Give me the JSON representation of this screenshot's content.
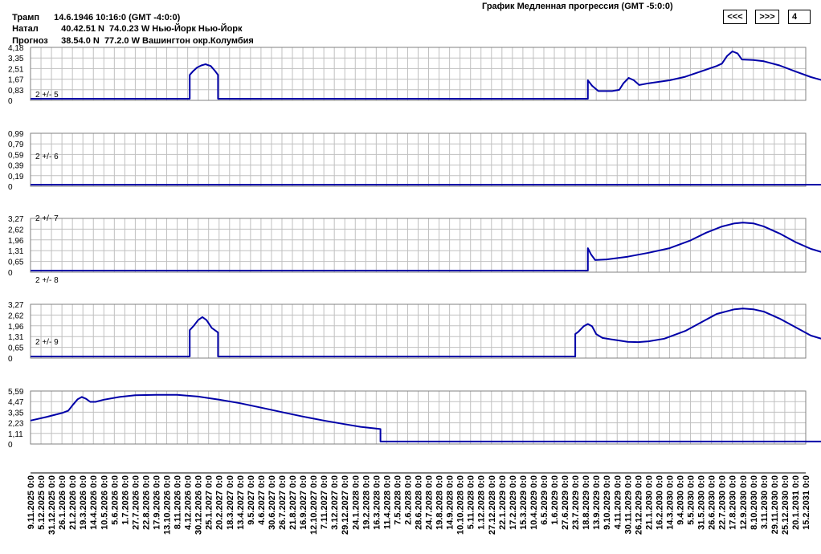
{
  "header": {
    "rows": [
      {
        "label": "Трамп",
        "value": "14.6.1946 10:16:0 (GMT -4:0:0)"
      },
      {
        "label": "Натал",
        "value": "40.42.51 N  74.0.23 W Нью-Йорк Нью-Йорк"
      },
      {
        "label": "Прогноз",
        "value": "38.54.0 N  77.2.0 W Вашингтон окр.Колумбия"
      }
    ],
    "chart_title": "График Медленная прогрессия (GMT -5:0:0)",
    "prev_label": "<<<",
    "next_label": ">>>",
    "page_value": "4"
  },
  "colors": {
    "line": "#0000a8",
    "grid": "#c0c0c0",
    "axis": "#000000",
    "background": "#ffffff"
  },
  "chart_data": {
    "type": "line",
    "x_tick_labels": [
      "9.11.2025 0:0",
      "5.12.2025 0:0",
      "31.12.2025 0:0",
      "26.1.2026 0:0",
      "21.2.2026 0:0",
      "19.3.2026 0:0",
      "14.4.2026 0:0",
      "10.5.2026 0:0",
      "5.6.2026 0:0",
      "1.7.2026 0:0",
      "27.7.2026 0:0",
      "22.8.2026 0:0",
      "17.9.2026 0:0",
      "13.10.2026 0:0",
      "8.11.2026 0:0",
      "4.12.2026 0:0",
      "30.12.2026 0:0",
      "25.1.2027 0:0",
      "20.2.2027 0:0",
      "18.3.2027 0:0",
      "13.4.2027 0:0",
      "9.5.2027 0:0",
      "4.6.2027 0:0",
      "30.6.2027 0:0",
      "26.7.2027 0:0",
      "21.8.2027 0:0",
      "16.9.2027 0:0",
      "12.10.2027 0:0",
      "7.11.2027 0:0",
      "3.12.2027 0:0",
      "29.12.2027 0:0",
      "24.1.2028 0:0",
      "19.2.2028 0:0",
      "16.3.2028 0:0",
      "11.4.2028 0:0",
      "7.5.2028 0:0",
      "2.6.2028 0:0",
      "28.6.2028 0:0",
      "24.7.2028 0:0",
      "19.8.2028 0:0",
      "14.9.2028 0:0",
      "10.10.2028 0:0",
      "5.11.2028 0:0",
      "1.12.2028 0:0",
      "27.12.2028 0:0",
      "22.1.2029 0:0",
      "17.2.2029 0:0",
      "15.3.2029 0:0",
      "10.4.2029 0:0",
      "6.5.2029 0:0",
      "1.6.2029 0:0",
      "27.6.2029 0:0",
      "23.7.2029 0:0",
      "18.8.2029 0:0",
      "13.9.2029 0:0",
      "9.10.2029 0:0",
      "4.11.2029 0:0",
      "30.11.2029 0:0",
      "26.12.2029 0:0",
      "21.1.2030 0:0",
      "16.2.2030 0:0",
      "14.3.2030 0:0",
      "9.4.2030 0:0",
      "5.5.2030 0:0",
      "31.5.2030 0:0",
      "26.6.2030 0:0",
      "22.7.2030 0:0",
      "17.8.2030 0:0",
      "12.9.2030 0:0",
      "8.10.2030 0:0",
      "3.11.2030 0:0",
      "29.11.2030 0:0",
      "25.12.2030 0:0",
      "20.1.2031 0:0",
      "15.2.2031 0:0"
    ],
    "panels": [
      {
        "label": "2 +/- 5",
        "y_ticks": [
          "4,18",
          "3,35",
          "2,51",
          "1,67",
          "0,83",
          "0"
        ],
        "ylim": [
          0,
          4.18
        ],
        "points": [
          [
            0,
            0
          ],
          [
            11.6,
            0
          ],
          [
            15.2,
            0
          ],
          [
            15.2,
            2.0
          ],
          [
            15.5,
            2.3
          ],
          [
            15.9,
            2.62
          ],
          [
            16.3,
            2.8
          ],
          [
            16.7,
            2.9
          ],
          [
            17.2,
            2.75
          ],
          [
            17.6,
            2.35
          ],
          [
            17.9,
            2.0
          ],
          [
            17.9,
            0
          ],
          [
            19.5,
            0
          ],
          [
            53.2,
            0
          ],
          [
            53.2,
            1.55
          ],
          [
            53.6,
            1.1
          ],
          [
            54.2,
            0.65
          ],
          [
            55.5,
            0.65
          ],
          [
            56.2,
            0.75
          ],
          [
            56.6,
            1.3
          ],
          [
            57.1,
            1.75
          ],
          [
            57.6,
            1.55
          ],
          [
            58.1,
            1.15
          ],
          [
            59.0,
            1.3
          ],
          [
            61.0,
            1.55
          ],
          [
            62.5,
            1.85
          ],
          [
            64.0,
            2.3
          ],
          [
            65.5,
            2.75
          ],
          [
            66.0,
            2.95
          ],
          [
            66.5,
            3.6
          ],
          [
            67.0,
            3.98
          ],
          [
            67.5,
            3.8
          ],
          [
            67.9,
            3.3
          ],
          [
            69.0,
            3.25
          ],
          [
            70.0,
            3.15
          ],
          [
            71.5,
            2.8
          ],
          [
            73.0,
            2.3
          ],
          [
            74.5,
            1.82
          ],
          [
            76.0,
            1.45
          ],
          [
            77.0,
            1.25
          ]
        ]
      },
      {
        "label": "2 +/- 6",
        "y_ticks": [
          "0,99",
          "0,79",
          "0,59",
          "0,39",
          "0,19",
          "0"
        ],
        "ylim": [
          0,
          0.99
        ],
        "points": [
          [
            0,
            0
          ],
          [
            77,
            0
          ]
        ]
      },
      {
        "label": "2 +/- 7",
        "y_ticks": [
          "3,27",
          "2,62",
          "1,96",
          "1,31",
          "0,65",
          "0"
        ],
        "ylim": [
          0,
          3.27
        ],
        "points": [
          [
            0,
            0
          ],
          [
            53.2,
            0
          ],
          [
            53.2,
            1.45
          ],
          [
            53.5,
            1.05
          ],
          [
            53.9,
            0.68
          ],
          [
            55.0,
            0.72
          ],
          [
            57.0,
            0.9
          ],
          [
            59.0,
            1.15
          ],
          [
            61.0,
            1.45
          ],
          [
            63.0,
            1.95
          ],
          [
            64.5,
            2.45
          ],
          [
            66.0,
            2.85
          ],
          [
            67.2,
            3.05
          ],
          [
            68.0,
            3.1
          ],
          [
            69.0,
            3.05
          ],
          [
            70.0,
            2.85
          ],
          [
            71.5,
            2.4
          ],
          [
            73.0,
            1.85
          ],
          [
            74.5,
            1.4
          ],
          [
            76.0,
            1.1
          ],
          [
            77.0,
            0.95
          ]
        ]
      },
      {
        "label": "2 +/- 8",
        "y_ticks": [],
        "ylim": [
          0,
          1
        ],
        "points": []
      },
      {
        "label": "2 +/- 9",
        "y_ticks": [
          "3,27",
          "2,62",
          "1,96",
          "1,31",
          "0,65",
          "0"
        ],
        "ylim": [
          0,
          3.27
        ],
        "points": [
          [
            0,
            0
          ],
          [
            15.2,
            0
          ],
          [
            15.2,
            1.7
          ],
          [
            15.6,
            2.0
          ],
          [
            16.0,
            2.35
          ],
          [
            16.4,
            2.55
          ],
          [
            16.8,
            2.35
          ],
          [
            17.3,
            1.85
          ],
          [
            17.9,
            1.55
          ],
          [
            17.9,
            0
          ],
          [
            19.5,
            0
          ],
          [
            52.0,
            0
          ],
          [
            52.0,
            1.45
          ],
          [
            52.3,
            1.6
          ],
          [
            52.8,
            1.95
          ],
          [
            53.2,
            2.1
          ],
          [
            53.6,
            1.95
          ],
          [
            54.0,
            1.45
          ],
          [
            54.6,
            1.2
          ],
          [
            56.0,
            1.05
          ],
          [
            57.0,
            0.95
          ],
          [
            58.0,
            0.93
          ],
          [
            59.0,
            0.98
          ],
          [
            60.5,
            1.15
          ],
          [
            62.5,
            1.65
          ],
          [
            64.0,
            2.2
          ],
          [
            65.5,
            2.75
          ],
          [
            67.2,
            3.05
          ],
          [
            68.0,
            3.1
          ],
          [
            69.0,
            3.05
          ],
          [
            70.0,
            2.9
          ],
          [
            71.5,
            2.45
          ],
          [
            73.0,
            1.9
          ],
          [
            74.5,
            1.35
          ],
          [
            76.0,
            1.05
          ],
          [
            77.0,
            0.92
          ]
        ]
      },
      {
        "label": "",
        "y_ticks": [
          "5,59",
          "4,47",
          "3,35",
          "2,23",
          "1,11",
          "0"
        ],
        "ylim": [
          0,
          5.59
        ],
        "points": [
          [
            0,
            2.45
          ],
          [
            1.5,
            2.85
          ],
          [
            3.0,
            3.3
          ],
          [
            3.6,
            3.55
          ],
          [
            4.1,
            4.3
          ],
          [
            4.5,
            4.85
          ],
          [
            4.9,
            5.1
          ],
          [
            5.3,
            4.9
          ],
          [
            5.7,
            4.55
          ],
          [
            6.2,
            4.55
          ],
          [
            7.0,
            4.8
          ],
          [
            8.5,
            5.1
          ],
          [
            10.0,
            5.3
          ],
          [
            12.0,
            5.35
          ],
          [
            14.0,
            5.35
          ],
          [
            16.0,
            5.15
          ],
          [
            18.0,
            4.8
          ],
          [
            20.0,
            4.4
          ],
          [
            22.0,
            3.9
          ],
          [
            24.0,
            3.4
          ],
          [
            26.0,
            2.9
          ],
          [
            28.0,
            2.45
          ],
          [
            30.0,
            2.05
          ],
          [
            31.5,
            1.75
          ],
          [
            33.0,
            1.55
          ],
          [
            33.4,
            1.5
          ],
          [
            33.4,
            0.1
          ],
          [
            77,
            0.1
          ]
        ]
      }
    ]
  }
}
